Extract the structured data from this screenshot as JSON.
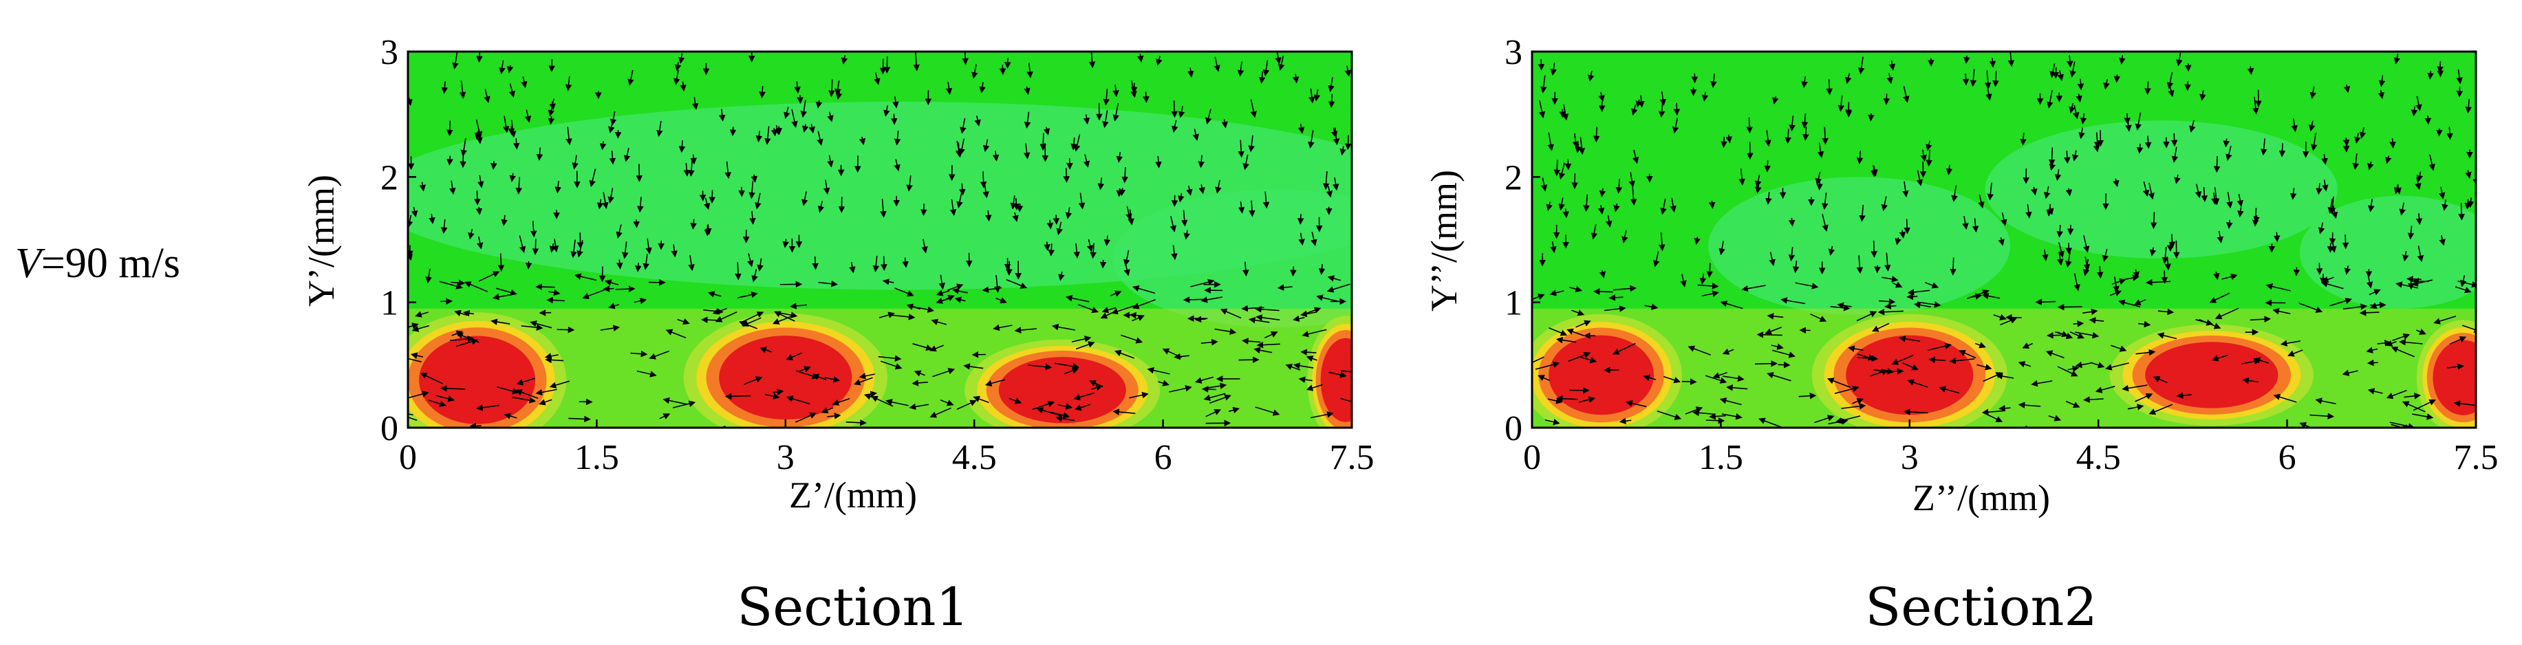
{
  "row_label": {
    "var": "V",
    "rest": "=90 m/s"
  },
  "chart_data": [
    {
      "type": "heatmap",
      "caption": "Section1",
      "xlabel": "Z’/(mm)",
      "ylabel": "Y’/(mm)",
      "xlim": [
        0,
        7.5
      ],
      "ylim": [
        0,
        3
      ],
      "xticks": [
        "0",
        "1.5",
        "3",
        "4.5",
        "6",
        "7.5"
      ],
      "yticks": [
        "0",
        "1",
        "2",
        "3"
      ],
      "colors": {
        "high": "#e41a1c",
        "orange": "#f47a28",
        "yellow": "#f2d620",
        "yellowgreen": "#a6e22e",
        "green": "#22dd20",
        "pale_green": "#3de660"
      },
      "hot_spots": [
        {
          "z": 0.55,
          "y": 0.38,
          "rz": 1.05,
          "ry": 0.4
        },
        {
          "z": 3.0,
          "y": 0.4,
          "rz": 1.2,
          "ry": 0.38
        },
        {
          "z": 5.2,
          "y": 0.3,
          "rz": 1.15,
          "ry": 0.3
        },
        {
          "z": 7.45,
          "y": 0.38,
          "rz": 0.45,
          "ry": 0.38
        }
      ],
      "pale_zones": [
        {
          "z": 3.9,
          "y": 1.85,
          "rz": 4.2,
          "ry": 0.75
        },
        {
          "z": 6.9,
          "y": 1.35,
          "rz": 1.3,
          "ry": 0.55
        }
      ],
      "vector_field": "downward flow above, lateral vortices near the wall"
    },
    {
      "type": "heatmap",
      "caption": "Section2",
      "xlabel": "Z’’/(mm)",
      "ylabel": "Y’’/(mm)",
      "xlim": [
        0,
        7.5
      ],
      "ylim": [
        0,
        3
      ],
      "xticks": [
        "0",
        "1.5",
        "3",
        "4.5",
        "6",
        "7.5"
      ],
      "yticks": [
        "0",
        "1",
        "2",
        "3"
      ],
      "colors": {
        "high": "#e41a1c",
        "orange": "#f47a28",
        "yellow": "#f2d620",
        "yellowgreen": "#a6e22e",
        "green": "#22dd20",
        "pale_green": "#3de660"
      },
      "hot_spots": [
        {
          "z": 0.55,
          "y": 0.42,
          "rz": 0.95,
          "ry": 0.36
        },
        {
          "z": 3.0,
          "y": 0.42,
          "rz": 1.15,
          "ry": 0.36
        },
        {
          "z": 5.4,
          "y": 0.42,
          "rz": 1.2,
          "ry": 0.3
        },
        {
          "z": 7.4,
          "y": 0.4,
          "rz": 0.55,
          "ry": 0.34
        }
      ],
      "pale_zones": [
        {
          "z": 2.6,
          "y": 1.45,
          "rz": 1.2,
          "ry": 0.55
        },
        {
          "z": 5.0,
          "y": 1.9,
          "rz": 1.4,
          "ry": 0.55
        },
        {
          "z": 6.9,
          "y": 1.4,
          "rz": 0.8,
          "ry": 0.45
        }
      ],
      "vector_field": "downward flow above, lateral vortices near the wall"
    }
  ]
}
